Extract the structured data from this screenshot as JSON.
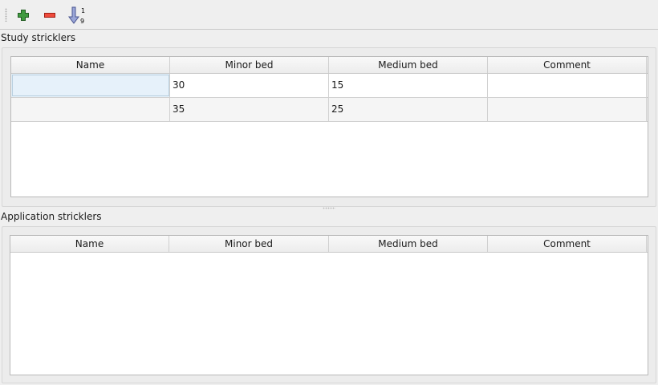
{
  "toolbar": {
    "add": "plus-icon",
    "remove": "minus-icon",
    "sort": "sort-ascending-icon",
    "sort_top": "1",
    "sort_bottom": "9"
  },
  "study": {
    "title": "Study stricklers",
    "columns": [
      "Name",
      "Minor bed",
      "Medium bed",
      "Comment"
    ],
    "rows": [
      [
        "",
        "30",
        "15",
        ""
      ],
      [
        "",
        "35",
        "25",
        ""
      ]
    ]
  },
  "application": {
    "title": "Application stricklers",
    "columns": [
      "Name",
      "Minor bed",
      "Medium bed",
      "Comment"
    ],
    "rows": []
  }
}
